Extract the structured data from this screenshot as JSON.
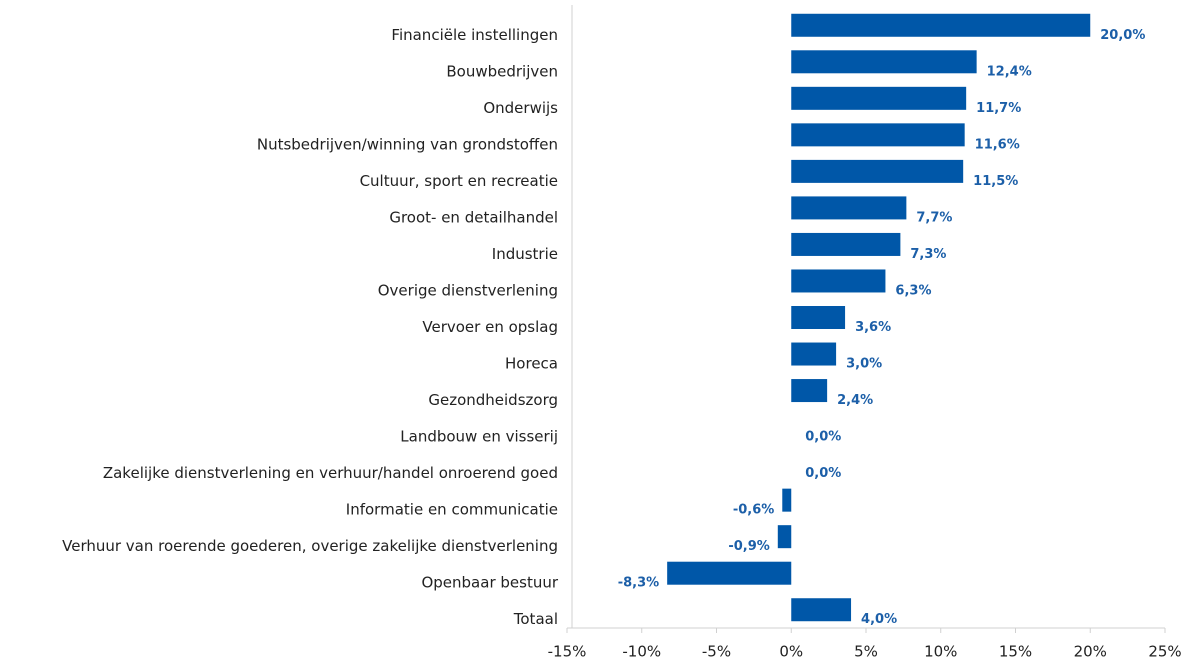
{
  "chart_data": {
    "type": "hbar",
    "categories": [
      "Financiële instellingen",
      "Bouwbedrijven",
      "Onderwijs",
      "Nutsbedrijven/winning van grondstoffen",
      "Cultuur, sport en recreatie",
      "Groot- en detailhandel",
      "Industrie",
      "Overige dienstverlening",
      "Vervoer en opslag",
      "Horeca",
      "Gezondheidszorg",
      "Landbouw en visserij",
      "Zakelijke dienstverlening en verhuur/handel onroerend goed",
      "Informatie en communicatie",
      "Verhuur van roerende goederen, overige zakelijke dienstverlening",
      "Openbaar bestuur",
      "Totaal"
    ],
    "values": [
      20.0,
      12.4,
      11.7,
      11.6,
      11.5,
      7.7,
      7.3,
      6.3,
      3.6,
      3.0,
      2.4,
      0.0,
      0.0,
      -0.6,
      -0.9,
      -8.3,
      4.0
    ],
    "value_labels": [
      "20,0%",
      "12,4%",
      "11,7%",
      "11,6%",
      "11,5%",
      "7,7%",
      "7,3%",
      "6,3%",
      "3,6%",
      "3,0%",
      "2,4%",
      "0,0%",
      "0,0%",
      "-0,6%",
      "-0,9%",
      "-8,3%",
      "4,0%"
    ],
    "color": "#0057a8",
    "xlim": [
      -15,
      25
    ],
    "xticks": [
      {
        "value": -15,
        "label": "-15%"
      },
      {
        "value": -10,
        "label": "-10%"
      },
      {
        "value": -5,
        "label": "-5%"
      },
      {
        "value": 0,
        "label": "0%"
      },
      {
        "value": 5,
        "label": "5%"
      },
      {
        "value": 10,
        "label": "10%"
      },
      {
        "value": 15,
        "label": "15%"
      },
      {
        "value": 20,
        "label": "20%"
      },
      {
        "value": 25,
        "label": "25%"
      }
    ]
  }
}
